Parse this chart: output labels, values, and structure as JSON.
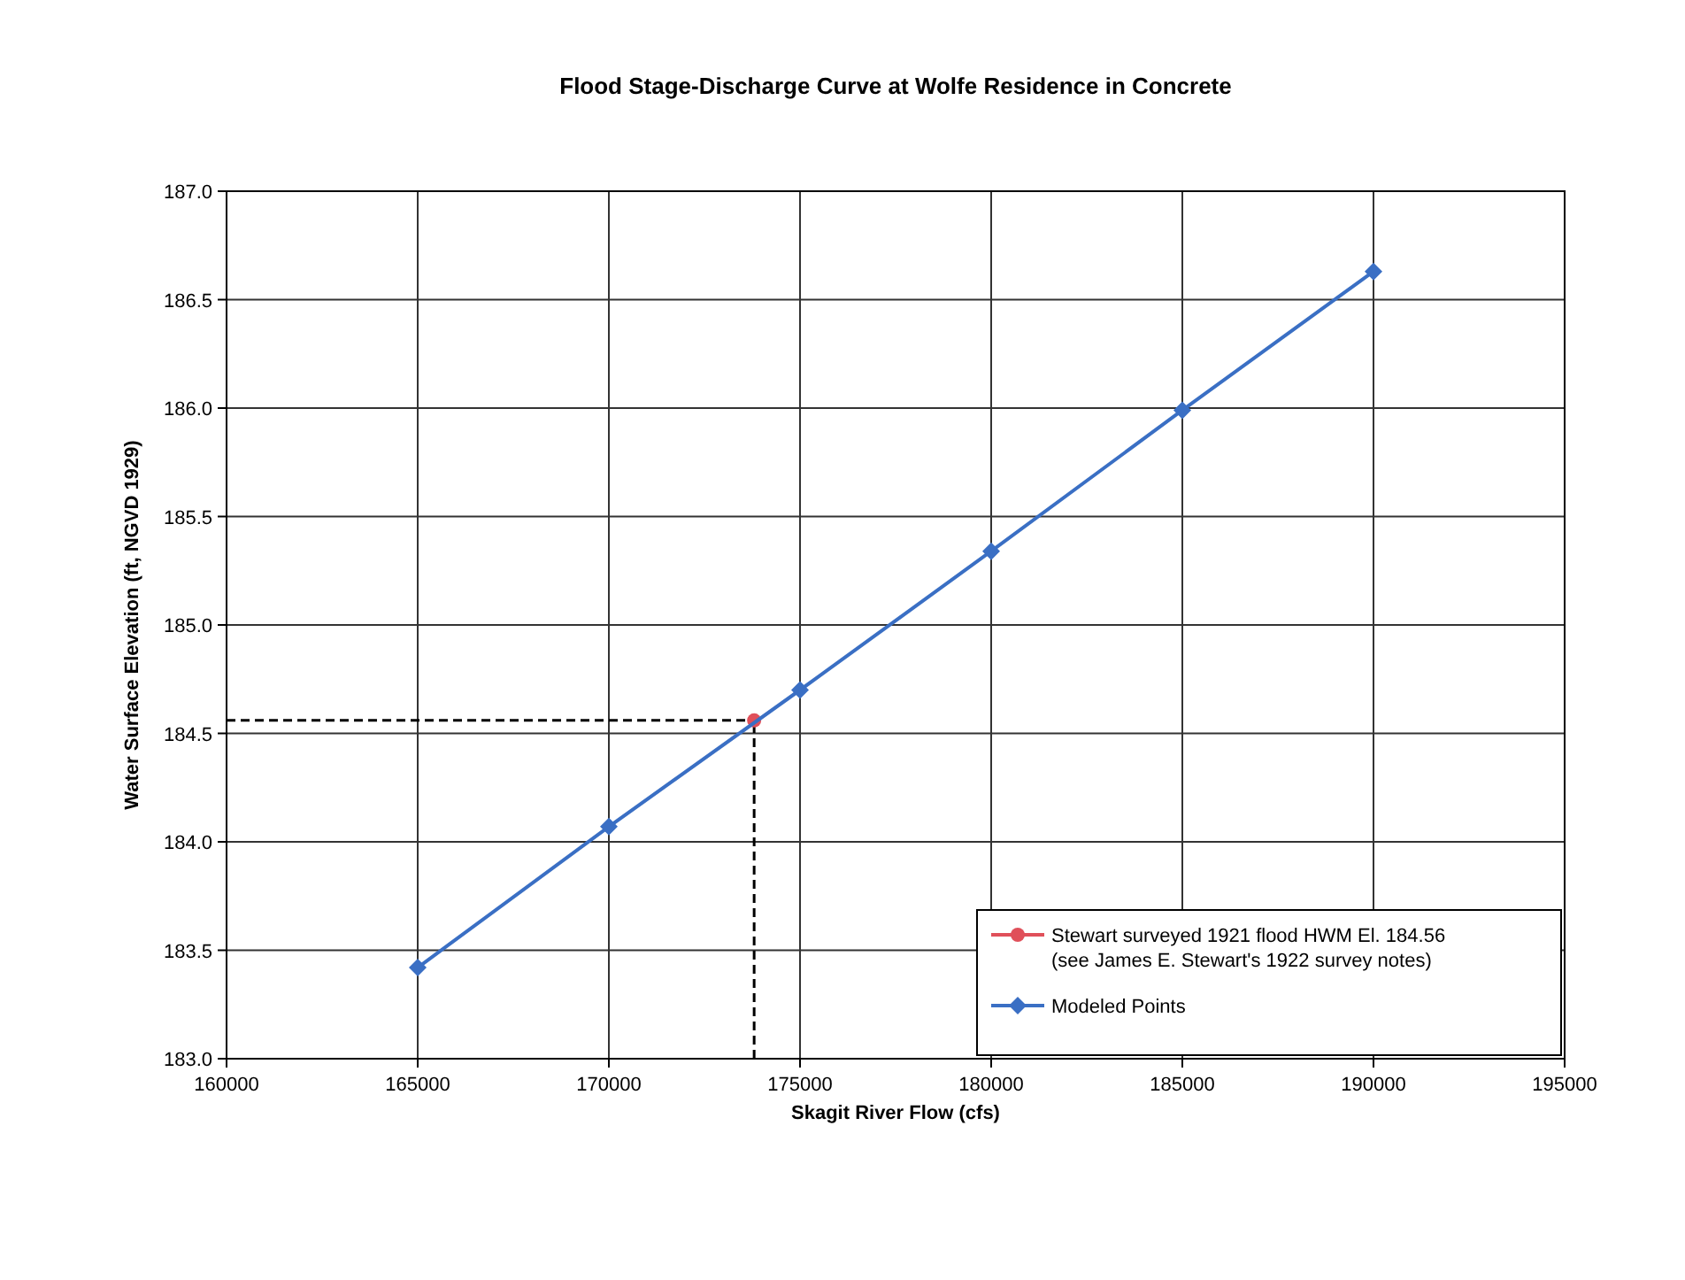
{
  "chart_data": {
    "type": "line",
    "title": "Flood Stage-Discharge Curve at Wolfe Residence in Concrete",
    "xlabel": "Skagit River Flow (cfs)",
    "ylabel": "Water Surface Elevation (ft, NGVD 1929)",
    "xlim": [
      160000,
      195000
    ],
    "xticks": [
      160000,
      165000,
      170000,
      175000,
      180000,
      185000,
      190000,
      195000
    ],
    "ylim": [
      183,
      187
    ],
    "yticks": [
      {
        "value": 183,
        "label": "183.0"
      },
      {
        "value": 183.5,
        "label": "183.5"
      },
      {
        "value": 184,
        "label": "184.0"
      },
      {
        "value": 184.5,
        "label": "184.5"
      },
      {
        "value": 185,
        "label": "185.0"
      },
      {
        "value": 185.5,
        "label": "185.5"
      },
      {
        "value": 186,
        "label": "186.0"
      },
      {
        "value": 186.5,
        "label": "186.5"
      },
      {
        "value": 187,
        "label": "187.0"
      }
    ],
    "grid": true,
    "legend": "bottom right",
    "line_style": "solid",
    "series": [
      {
        "name": "Stewart surveyed 1921 flood HWM El. 184.56\n(see James E. Stewart's 1922 survey notes)",
        "type": "scatter",
        "marker": "circle",
        "color": "#e0505a",
        "x": [
          173800
        ],
        "values": [
          184.56
        ]
      },
      {
        "name": "Modeled Points",
        "marker": "diamond",
        "color": "#3a6fc4",
        "x": [
          165000,
          170000,
          175000,
          180000,
          185000,
          190000
        ],
        "values": [
          183.42,
          184.07,
          184.7,
          185.34,
          185.99,
          186.63
        ]
      }
    ],
    "ref_lines": [
      {
        "axis": "x",
        "value": 173800,
        "line_style": "dashed",
        "color": "#000000"
      },
      {
        "axis": "y",
        "value": 184.56,
        "line_style": "dashed",
        "color": "#000000"
      }
    ]
  }
}
